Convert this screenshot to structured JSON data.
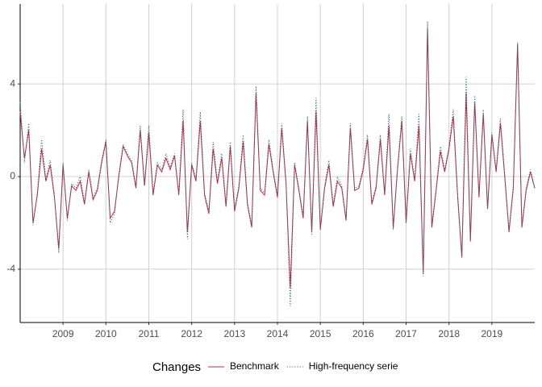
{
  "chart_data": {
    "type": "line",
    "x": [
      2008.0,
      2008.1,
      2008.2,
      2008.3,
      2008.4,
      2008.5,
      2008.6,
      2008.7,
      2008.8,
      2008.9,
      2009.0,
      2009.1,
      2009.2,
      2009.3,
      2009.4,
      2009.5,
      2009.6,
      2009.7,
      2009.8,
      2009.9,
      2010.0,
      2010.1,
      2010.2,
      2010.3,
      2010.4,
      2010.5,
      2010.6,
      2010.7,
      2010.8,
      2010.9,
      2011.0,
      2011.1,
      2011.2,
      2011.3,
      2011.4,
      2011.5,
      2011.6,
      2011.7,
      2011.8,
      2011.9,
      2012.0,
      2012.1,
      2012.2,
      2012.3,
      2012.4,
      2012.5,
      2012.6,
      2012.7,
      2012.8,
      2012.9,
      2013.0,
      2013.1,
      2013.2,
      2013.3,
      2013.4,
      2013.5,
      2013.6,
      2013.7,
      2013.8,
      2013.9,
      2014.0,
      2014.1,
      2014.2,
      2014.3,
      2014.4,
      2014.5,
      2014.6,
      2014.7,
      2014.8,
      2014.9,
      2015.0,
      2015.1,
      2015.2,
      2015.3,
      2015.4,
      2015.5,
      2015.6,
      2015.7,
      2015.8,
      2015.9,
      2016.0,
      2016.1,
      2016.2,
      2016.3,
      2016.4,
      2016.5,
      2016.6,
      2016.7,
      2016.8,
      2016.9,
      2017.0,
      2017.1,
      2017.2,
      2017.3,
      2017.4,
      2017.5,
      2017.6,
      2017.7,
      2017.8,
      2017.9,
      2018.0,
      2018.1,
      2018.2,
      2018.3,
      2018.4,
      2018.5,
      2018.6,
      2018.7,
      2018.8,
      2018.9,
      2019.0,
      2019.1,
      2019.2,
      2019.3,
      2019.4,
      2019.5,
      2019.6,
      2019.7,
      2019.8,
      2019.9,
      2020.0
    ],
    "series": [
      {
        "name": "Benchmark",
        "color": "#c0283a",
        "dash": "solid",
        "values": [
          2.8,
          0.8,
          2.0,
          -2.0,
          -0.8,
          1.2,
          -0.2,
          0.5,
          -0.9,
          -3.1,
          0.5,
          -1.8,
          -0.4,
          -0.6,
          -0.2,
          -1.2,
          0.2,
          -1.0,
          -0.6,
          0.6,
          1.5,
          -1.8,
          -1.5,
          0.0,
          1.3,
          0.9,
          0.6,
          -0.5,
          2.0,
          -0.4,
          1.9,
          -0.8,
          0.5,
          0.2,
          0.8,
          0.3,
          0.9,
          -0.8,
          2.4,
          -2.4,
          0.5,
          -0.2,
          2.4,
          -0.8,
          -1.6,
          1.2,
          -0.3,
          0.8,
          -1.3,
          1.3,
          -1.5,
          -0.5,
          1.5,
          -1.2,
          -2.2,
          3.6,
          -0.6,
          -0.8,
          1.4,
          0.2,
          -0.9,
          2.1,
          -0.3,
          -4.8,
          0.5,
          -0.6,
          -1.8,
          2.4,
          -2.4,
          2.8,
          -2.3,
          -0.5,
          0.5,
          -1.3,
          -0.2,
          -0.5,
          -1.9,
          2.1,
          -0.6,
          -0.5,
          0.3,
          1.6,
          -1.2,
          -0.5,
          1.6,
          -0.8,
          2.2,
          -2.2,
          0.3,
          2.4,
          -2.0,
          1.0,
          -0.2,
          2.2,
          -4.2,
          6.4,
          -2.2,
          -0.6,
          1.1,
          0.2,
          1.2,
          2.6,
          -0.8,
          -3.5,
          3.6,
          -2.8,
          3.2,
          -0.9,
          2.7,
          -1.4,
          1.8,
          0.2,
          2.3,
          0.0,
          -2.4,
          -0.5,
          5.7,
          -2.2,
          -0.6,
          0.2,
          -0.5
        ]
      },
      {
        "name": "High-frequency serie",
        "color": "#2e6a8e",
        "dash": "dotted",
        "values": [
          3.2,
          0.6,
          2.3,
          -2.1,
          -0.7,
          1.6,
          -0.1,
          0.7,
          -0.8,
          -3.3,
          0.6,
          -1.9,
          -0.3,
          -0.5,
          0.0,
          -1.1,
          0.3,
          -0.9,
          -0.5,
          0.7,
          1.6,
          -2.0,
          -1.6,
          0.1,
          1.4,
          1.0,
          0.7,
          -0.4,
          2.2,
          -0.3,
          2.2,
          -0.7,
          0.6,
          0.3,
          1.0,
          0.4,
          1.0,
          -0.7,
          2.9,
          -2.7,
          0.6,
          -0.1,
          2.8,
          -0.7,
          -1.5,
          1.5,
          -0.2,
          1.0,
          -1.2,
          1.5,
          -1.4,
          -0.4,
          1.8,
          -1.1,
          -2.1,
          3.9,
          -0.5,
          -0.7,
          1.6,
          0.3,
          -0.8,
          2.3,
          -0.2,
          -5.6,
          0.6,
          -0.5,
          -1.7,
          2.6,
          -2.5,
          3.4,
          -2.2,
          -0.4,
          0.7,
          -1.2,
          0.0,
          -0.4,
          -1.8,
          2.3,
          -0.5,
          -0.4,
          0.4,
          1.8,
          -1.1,
          -0.4,
          1.8,
          -0.7,
          2.7,
          -2.3,
          0.4,
          2.6,
          -1.9,
          1.2,
          -0.1,
          2.7,
          -4.3,
          6.7,
          -2.1,
          -0.5,
          1.3,
          0.3,
          1.3,
          2.9,
          -0.7,
          -3.4,
          4.3,
          -2.7,
          3.5,
          -0.8,
          2.9,
          -1.3,
          1.9,
          0.3,
          2.5,
          0.1,
          -2.3,
          -0.4,
          5.8,
          -2.1,
          -0.5,
          0.3,
          -0.5
        ]
      }
    ],
    "xlim": [
      2008,
      2020
    ],
    "xticks": [
      2009,
      2010,
      2011,
      2012,
      2013,
      2014,
      2015,
      2016,
      2017,
      2018,
      2019
    ],
    "ylim": [
      -6.3,
      7.45
    ],
    "yticks": [
      -4,
      0,
      4
    ],
    "grid": true,
    "legend_position": "bottom",
    "legend_title": "Changes"
  }
}
